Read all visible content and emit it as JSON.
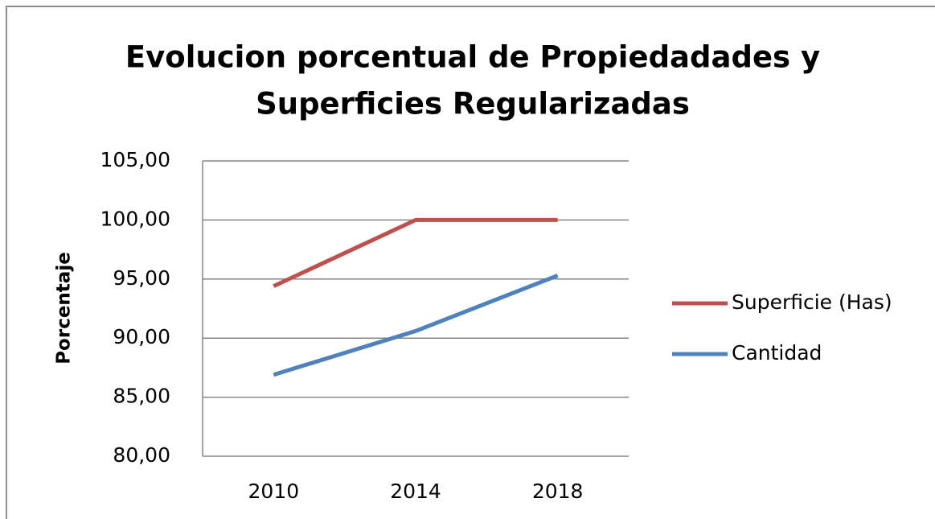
{
  "chart_data": {
    "type": "line",
    "title": [
      "Evolucion porcentual de Propiedadades y",
      "Superficies Regularizadas"
    ],
    "ylabel": "Porcentaje",
    "categories": [
      "2010",
      "2014",
      "2018"
    ],
    "series": [
      {
        "name": "Superficie (Has)",
        "color": "#c0504d",
        "values": [
          94.4,
          100,
          100
        ]
      },
      {
        "name": "Cantidad",
        "color": "#4f81bd",
        "values": [
          86.9,
          90.6,
          95.3
        ]
      }
    ],
    "ylim": [
      80,
      105
    ],
    "yticks": [
      {
        "value": 80,
        "label": "80,00"
      },
      {
        "value": 85,
        "label": "85,00"
      },
      {
        "value": 90,
        "label": "90,00"
      },
      {
        "value": 95,
        "label": "95,00"
      },
      {
        "value": 100,
        "label": "100,00"
      },
      {
        "value": 105,
        "label": "105,00"
      }
    ],
    "grid": true,
    "legend": "right"
  }
}
